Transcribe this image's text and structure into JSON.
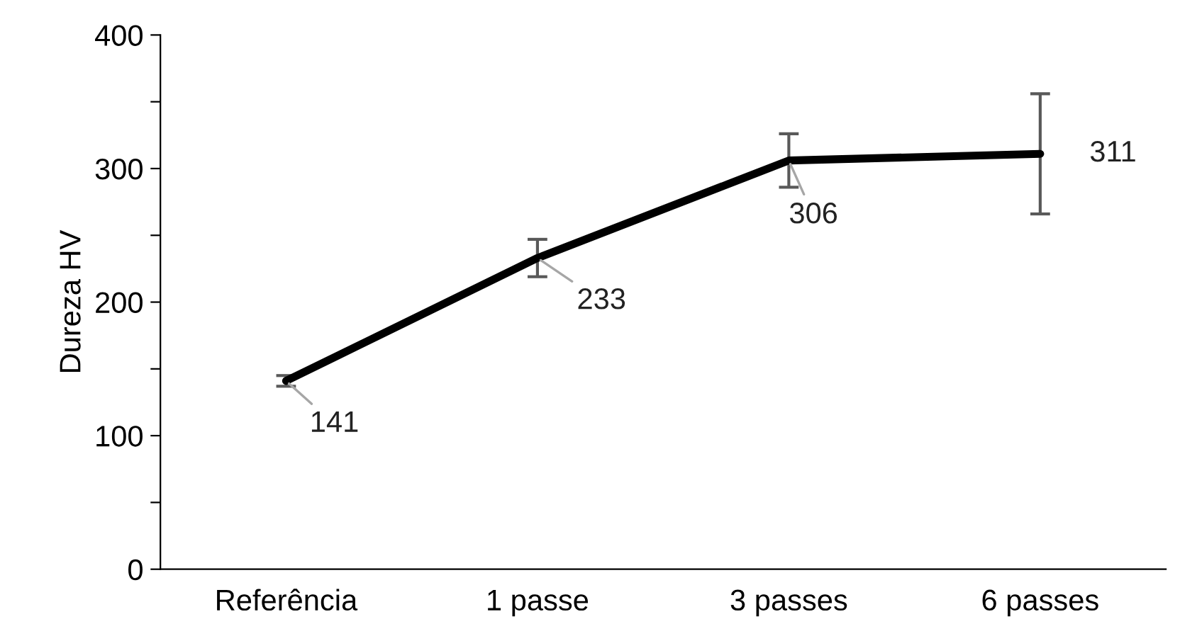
{
  "chart_data": {
    "type": "line",
    "ylabel": "Dureza HV",
    "categories": [
      "Referência",
      "1 passe",
      "3 passes",
      "6 passes"
    ],
    "series": [
      {
        "color": "#000000",
        "values": [
          141,
          233,
          306,
          311
        ],
        "errors": [
          4,
          14,
          20,
          45
        ]
      }
    ],
    "ylim": [
      0,
      400
    ],
    "yticks": [
      0,
      {
        "value": 50,
        "label": null
      },
      100,
      {
        "value": 150,
        "label": null
      },
      200,
      {
        "value": 250,
        "label": null
      },
      300,
      {
        "value": 350,
        "label": null
      },
      400
    ],
    "data_labels": true,
    "grid": false,
    "marker": "none",
    "line_style": "solid"
  }
}
